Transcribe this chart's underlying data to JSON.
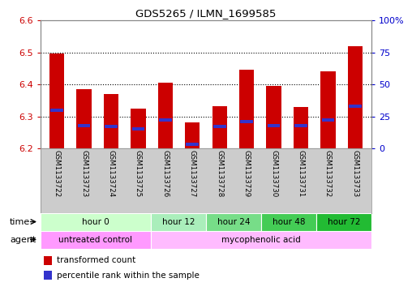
{
  "title": "GDS5265 / ILMN_1699585",
  "samples": [
    "GSM1133722",
    "GSM1133723",
    "GSM1133724",
    "GSM1133725",
    "GSM1133726",
    "GSM1133727",
    "GSM1133728",
    "GSM1133729",
    "GSM1133730",
    "GSM1133731",
    "GSM1133732",
    "GSM1133733"
  ],
  "transformed_counts": [
    6.495,
    6.385,
    6.37,
    6.325,
    6.405,
    6.28,
    6.332,
    6.445,
    6.395,
    6.33,
    6.44,
    6.52
  ],
  "percentile_ranks": [
    30,
    18,
    17,
    15,
    22,
    3,
    17,
    21,
    18,
    18,
    22,
    33
  ],
  "ylim_left": [
    6.2,
    6.6
  ],
  "ylim_right": [
    0,
    100
  ],
  "yticks_left": [
    6.2,
    6.3,
    6.4,
    6.5,
    6.6
  ],
  "yticks_right": [
    0,
    25,
    50,
    75,
    100
  ],
  "ytick_labels_right": [
    "0",
    "25",
    "50",
    "75",
    "100%"
  ],
  "bar_color": "#cc0000",
  "percentile_color": "#3333cc",
  "bar_bottom": 6.2,
  "time_groups": [
    {
      "label": "hour 0",
      "start": 0,
      "end": 4,
      "color": "#ccffcc"
    },
    {
      "label": "hour 12",
      "start": 4,
      "end": 6,
      "color": "#aaeebb"
    },
    {
      "label": "hour 24",
      "start": 6,
      "end": 8,
      "color": "#77dd88"
    },
    {
      "label": "hour 48",
      "start": 8,
      "end": 10,
      "color": "#44cc55"
    },
    {
      "label": "hour 72",
      "start": 10,
      "end": 12,
      "color": "#22bb33"
    }
  ],
  "agent_groups": [
    {
      "label": "untreated control",
      "start": 0,
      "end": 4,
      "color": "#ff99ff"
    },
    {
      "label": "mycophenolic acid",
      "start": 4,
      "end": 12,
      "color": "#ffbbff"
    }
  ],
  "legend_items": [
    {
      "label": "transformed count",
      "color": "#cc0000"
    },
    {
      "label": "percentile rank within the sample",
      "color": "#3333cc"
    }
  ],
  "grid_color": "black",
  "grid_linestyle": ":",
  "grid_linewidth": 0.8,
  "tick_label_color_left": "#cc0000",
  "tick_label_color_right": "#0000cc",
  "bg_color": "#ffffff",
  "plot_bg_color": "#ffffff",
  "sample_bg_color": "#cccccc",
  "time_label": "time",
  "agent_label": "agent",
  "border_color": "#888888"
}
